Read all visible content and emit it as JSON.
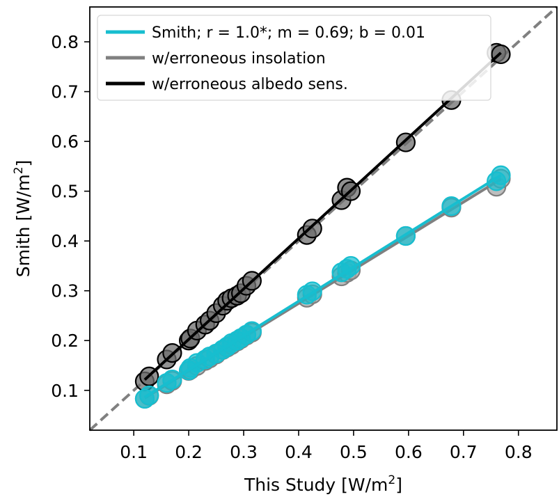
{
  "chart_data": {
    "type": "scatter",
    "title": "",
    "xlabel": "This Study [W/m",
    "xlabel_sup": "2",
    "xlabel_end": "]",
    "ylabel": "Smith [W/m",
    "ylabel_sup": "2",
    "ylabel_end": "]",
    "xlim": [
      0.02,
      0.87
    ],
    "ylim": [
      0.02,
      0.87
    ],
    "xticks": [
      "0.1",
      "0.2",
      "0.3",
      "0.4",
      "0.5",
      "0.6",
      "0.7",
      "0.8"
    ],
    "yticks": [
      "0.1",
      "0.2",
      "0.3",
      "0.4",
      "0.5",
      "0.6",
      "0.7",
      "0.8"
    ],
    "grid": false,
    "legend_position": "top-left",
    "one_to_one_line": {
      "color": "#808080",
      "style": "dashed"
    },
    "series": [
      {
        "name": "w/erroneous insolation",
        "color": "#808080",
        "marker_fill": "#a8a8a8",
        "x": [
          0.12,
          0.128,
          0.16,
          0.17,
          0.2,
          0.203,
          0.215,
          0.23,
          0.238,
          0.25,
          0.262,
          0.27,
          0.278,
          0.288,
          0.295,
          0.305,
          0.315,
          0.415,
          0.425,
          0.478,
          0.488,
          0.495,
          0.595,
          0.678,
          0.76,
          0.768
        ],
        "y": [
          0.083,
          0.089,
          0.112,
          0.119,
          0.139,
          0.141,
          0.149,
          0.159,
          0.164,
          0.172,
          0.181,
          0.186,
          0.191,
          0.198,
          0.203,
          0.21,
          0.216,
          0.286,
          0.293,
          0.329,
          0.336,
          0.341,
          0.41,
          0.467,
          0.509,
          0.525
        ]
      },
      {
        "name": "w/erroneous albedo sens.",
        "color": "#000000",
        "marker_fill": "#6e6e6e",
        "x": [
          0.12,
          0.128,
          0.16,
          0.17,
          0.2,
          0.203,
          0.215,
          0.23,
          0.238,
          0.25,
          0.262,
          0.27,
          0.278,
          0.288,
          0.295,
          0.305,
          0.315,
          0.415,
          0.425,
          0.478,
          0.488,
          0.495,
          0.595,
          0.678,
          0.76,
          0.768
        ],
        "y": [
          0.118,
          0.128,
          0.162,
          0.175,
          0.2,
          0.204,
          0.22,
          0.232,
          0.24,
          0.255,
          0.27,
          0.28,
          0.285,
          0.29,
          0.295,
          0.31,
          0.32,
          0.412,
          0.425,
          0.482,
          0.507,
          0.5,
          0.598,
          0.683,
          0.778,
          0.775
        ]
      },
      {
        "name": "Smith; r = 1.0*; m = 0.69; b = 0.01",
        "color": "#17becf",
        "marker_fill": "#17becf",
        "x": [
          0.12,
          0.128,
          0.16,
          0.17,
          0.2,
          0.203,
          0.215,
          0.23,
          0.238,
          0.25,
          0.262,
          0.27,
          0.278,
          0.288,
          0.295,
          0.305,
          0.315,
          0.415,
          0.425,
          0.478,
          0.488,
          0.495,
          0.595,
          0.678,
          0.76,
          0.768
        ],
        "y": [
          0.083,
          0.09,
          0.115,
          0.122,
          0.14,
          0.145,
          0.155,
          0.162,
          0.168,
          0.174,
          0.182,
          0.188,
          0.195,
          0.2,
          0.205,
          0.212,
          0.219,
          0.292,
          0.299,
          0.337,
          0.344,
          0.35,
          0.41,
          0.47,
          0.52,
          0.532
        ]
      }
    ],
    "legend": [
      {
        "label": "Smith; r = 1.0*; m = 0.69; b = 0.01",
        "color": "#17becf"
      },
      {
        "label": "w/erroneous insolation",
        "color": "#808080"
      },
      {
        "label": "w/erroneous albedo sens.",
        "color": "#000000"
      }
    ]
  }
}
